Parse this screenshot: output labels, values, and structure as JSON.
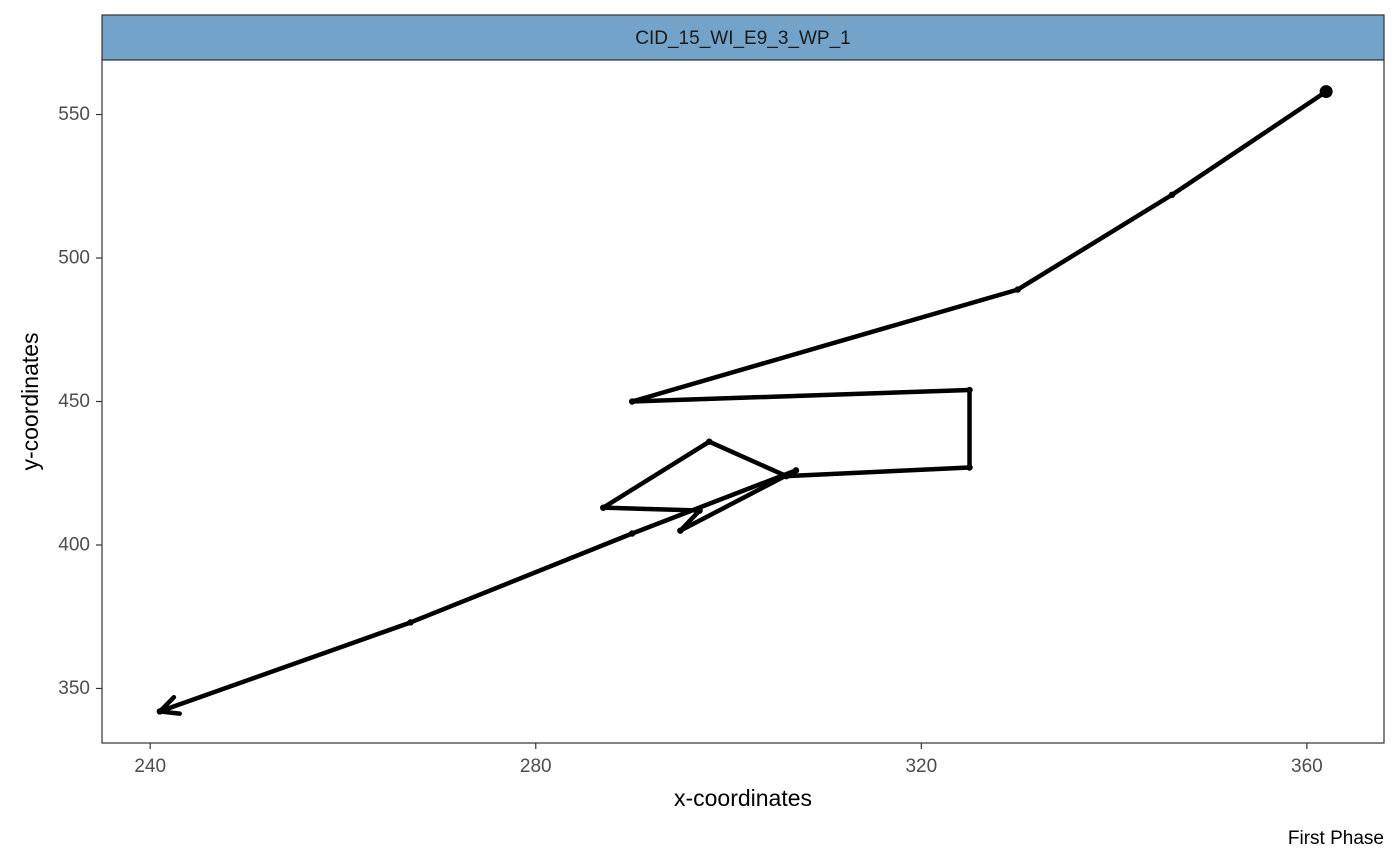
{
  "chart_data": {
    "type": "line",
    "facet_label": "CID_15_WI_E9_3_WP_1",
    "xlabel": "x-coordinates",
    "ylabel": "y-coordinates",
    "caption": "First Phase",
    "xlim": [
      235,
      368
    ],
    "ylim": [
      331,
      569
    ],
    "x_ticks": [
      240,
      280,
      320,
      360
    ],
    "y_ticks": [
      350,
      400,
      450,
      500,
      550
    ],
    "grid": false,
    "colors": {
      "line": "#000000",
      "strip_fill": "#74a3c9",
      "panel_border": "#333333",
      "tick_text": "#4d4d4d"
    },
    "series": [
      {
        "points": [
          [
            362,
            558
          ],
          [
            346,
            522
          ],
          [
            330,
            489
          ],
          [
            290,
            450
          ],
          [
            325,
            454
          ],
          [
            325,
            427
          ],
          [
            306,
            424
          ],
          [
            298,
            436
          ],
          [
            287,
            413
          ],
          [
            297,
            412
          ],
          [
            295,
            405
          ],
          [
            307,
            426
          ],
          [
            290,
            404
          ],
          [
            267,
            373
          ],
          [
            241,
            342
          ]
        ]
      }
    ],
    "start_marker": "circle",
    "end_marker": "arrow"
  }
}
